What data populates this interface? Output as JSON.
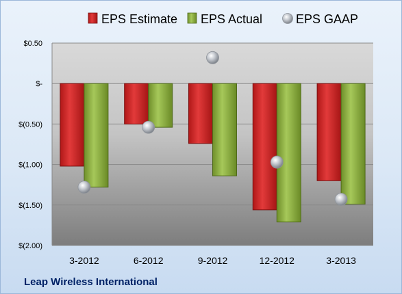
{
  "chart_data": {
    "type": "bar",
    "categories": [
      "3-2012",
      "6-2012",
      "9-2012",
      "12-2012",
      "3-2013"
    ],
    "series": [
      {
        "name": "EPS Estimate",
        "kind": "bar",
        "color": "#cc1f1f",
        "values": [
          -1.02,
          -0.5,
          -0.74,
          -1.56,
          -1.2
        ]
      },
      {
        "name": "EPS Actual",
        "kind": "bar",
        "color": "#8aae3c",
        "values": [
          -1.28,
          -0.54,
          -1.14,
          -1.71,
          -1.49
        ]
      },
      {
        "name": "EPS GAAP",
        "kind": "marker",
        "color": "#b8bcc2",
        "values": [
          -1.28,
          -0.54,
          0.32,
          -0.97,
          -1.43
        ]
      }
    ],
    "ylim": [
      -2.0,
      0.5
    ],
    "yticks": [
      0.5,
      0,
      -0.5,
      -1.0,
      -1.5,
      -2.0
    ],
    "ytick_labels": [
      "$0.50",
      "$-",
      "$(0.50)",
      "$(1.00)",
      "$(1.50)",
      "$(2.00)"
    ],
    "grid": true,
    "legend": "top"
  },
  "footer": {
    "company": "Leap Wireless International"
  }
}
